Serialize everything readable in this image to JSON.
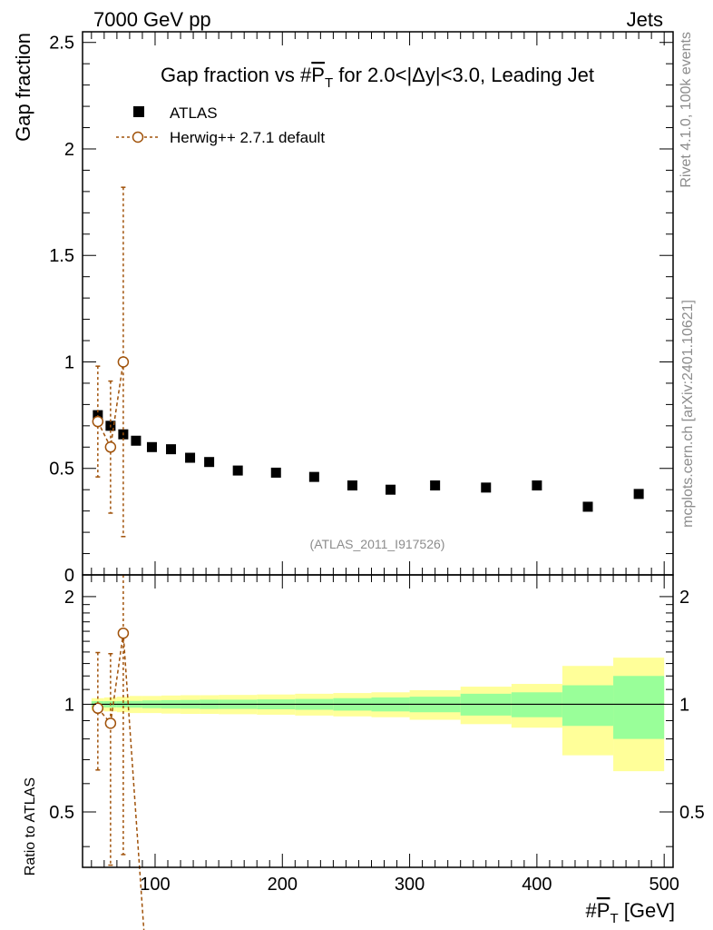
{
  "header": {
    "left": "7000 GeV pp",
    "right": "Jets"
  },
  "side_text": {
    "rivet": "Rivet 4.1.0,  100k events",
    "mcplots": "mcplots.cern.ch [arXiv:2401.10621]"
  },
  "chart_data": {
    "type": "scatter",
    "title_prefix": "Gap fraction vs #",
    "title_var": "P",
    "title_sub": "T",
    "title_suffix": " for 2.0<|Δy|<3.0, Leading Jet",
    "analysis_id": "(ATLAS_2011_I917526)",
    "xlabel_prefix": "#",
    "xlabel_var": "P",
    "xlabel_sub": "T",
    "xlabel_suffix": " [GeV]",
    "ylabel_main": "Gap fraction",
    "ylabel_ratio": "Ratio to ATLAS",
    "xlim": [
      43,
      507
    ],
    "ylim_main": [
      0,
      2.55
    ],
    "ylim_ratio": [
      0.35,
      2.3
    ],
    "x_ticks": [
      100,
      200,
      300,
      400,
      500
    ],
    "y_ticks_main": [
      0,
      0.5,
      1,
      1.5,
      2,
      2.5
    ],
    "y_tick_labels_main": [
      "0",
      "0.5",
      "1",
      "1.5",
      "2",
      "2.5"
    ],
    "y_ticks_ratio": [
      0.5,
      1,
      2
    ],
    "y_tick_labels_ratio": [
      "0.5",
      "1",
      "2"
    ],
    "legend": [
      {
        "name": "ATLAS",
        "style": "black-square"
      },
      {
        "name": "Herwig++ 2.7.1 default",
        "style": "brown-dashed-circle"
      }
    ],
    "atlas": {
      "x": [
        55,
        65,
        75,
        85,
        97.5,
        112.5,
        127.5,
        142.5,
        165,
        195,
        225,
        255,
        285,
        320,
        360,
        400,
        440,
        480
      ],
      "xlo": [
        50,
        60,
        70,
        80,
        90,
        105,
        120,
        135,
        150,
        180,
        210,
        240,
        270,
        300,
        340,
        380,
        420,
        460
      ],
      "xhi": [
        60,
        70,
        80,
        90,
        105,
        120,
        135,
        150,
        180,
        210,
        240,
        270,
        300,
        340,
        380,
        420,
        460,
        500
      ],
      "y": [
        0.75,
        0.7,
        0.66,
        0.63,
        0.6,
        0.59,
        0.55,
        0.53,
        0.49,
        0.48,
        0.46,
        0.42,
        0.4,
        0.42,
        0.41,
        0.42,
        0.32,
        0.38
      ],
      "band_stat": [
        0.02,
        0.02,
        0.02,
        0.022,
        0.025,
        0.027,
        0.028,
        0.03,
        0.03,
        0.032,
        0.035,
        0.04,
        0.045,
        0.05,
        0.07,
        0.08,
        0.13,
        0.2
      ],
      "band_total": [
        0.04,
        0.045,
        0.05,
        0.055,
        0.055,
        0.058,
        0.06,
        0.06,
        0.062,
        0.065,
        0.07,
        0.075,
        0.08,
        0.095,
        0.12,
        0.14,
        0.28,
        0.35
      ]
    },
    "herwig": {
      "x": [
        55,
        65,
        75
      ],
      "y": [
        0.72,
        0.6,
        1.0
      ],
      "err": [
        0.26,
        0.31,
        0.82
      ],
      "ratio": [
        0.975,
        0.885,
        1.58
      ],
      "ratio_err_lo": [
        0.32,
        0.53,
        1.2
      ],
      "ratio_err_hi": [
        0.42,
        0.5,
        1.2
      ],
      "ratio_next_x": 92.5,
      "ratio_next_y": 0.2
    }
  }
}
